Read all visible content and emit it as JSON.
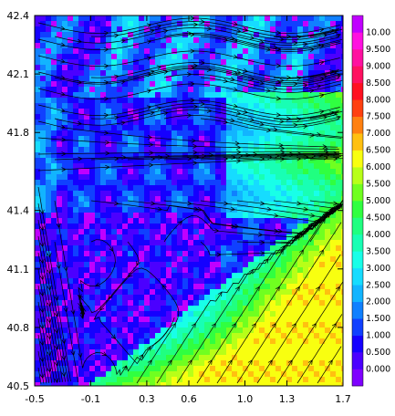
{
  "chart_data": {
    "type": "heatmap",
    "title": "",
    "xlabel": "",
    "ylabel": "",
    "x_ticks": [
      "-0.5",
      "-0.1",
      "0.3",
      "0.6",
      "1.0",
      "1.3",
      "1.7"
    ],
    "y_ticks": [
      "40.5",
      "40.8",
      "41.1",
      "41.4",
      "41.8",
      "42.1",
      "42.4"
    ],
    "xlim": [
      -0.5,
      1.7
    ],
    "ylim": [
      40.5,
      42.4
    ],
    "colorbar": {
      "levels": [
        "0.000",
        "0.500",
        "1.000",
        "1.500",
        "2.000",
        "2.500",
        "3.000",
        "3.500",
        "4.000",
        "4.500",
        "5.000",
        "5.500",
        "6.000",
        "6.500",
        "7.000",
        "7.500",
        "8.000",
        "8.500",
        "9.000",
        "9.500",
        "10.00"
      ],
      "colors": [
        "#7f00ff",
        "#4b00ff",
        "#1500ff",
        "#1040ff",
        "#1080ff",
        "#12b4ff",
        "#16dcff",
        "#18ffe8",
        "#18ffb4",
        "#20ff80",
        "#30ff40",
        "#70ff20",
        "#b8ff18",
        "#f8ff10",
        "#ffc010",
        "#ff8010",
        "#ff4010",
        "#ff1020",
        "#ff1060",
        "#ff10a0",
        "#ff10e0",
        "#c000ff"
      ]
    },
    "overlay": "streamlines",
    "grid": false
  }
}
